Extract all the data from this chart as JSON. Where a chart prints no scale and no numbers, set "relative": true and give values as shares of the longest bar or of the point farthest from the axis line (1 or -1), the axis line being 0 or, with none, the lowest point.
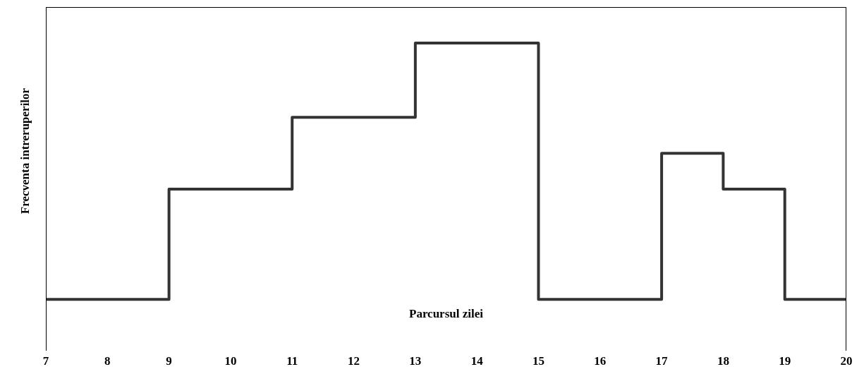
{
  "chart_data": {
    "type": "step",
    "relative": true,
    "xlabel": "Parcursul zilei",
    "ylabel": "Frecventa intreruperilor",
    "x": [
      7,
      8,
      9,
      10,
      11,
      12,
      13,
      14,
      15,
      16,
      17,
      18,
      19,
      20
    ],
    "series": [
      {
        "color": "#333333",
        "values": [
          0,
          0,
          0.43,
          0.43,
          0.71,
          0.71,
          1,
          1,
          0,
          0,
          0.57,
          0.43,
          0,
          0
        ]
      }
    ],
    "xlim": [
      7,
      20
    ],
    "xticks": [
      7,
      8,
      9,
      10,
      11,
      12,
      13,
      14,
      15,
      16,
      17,
      18,
      19,
      20
    ],
    "grid": false
  }
}
